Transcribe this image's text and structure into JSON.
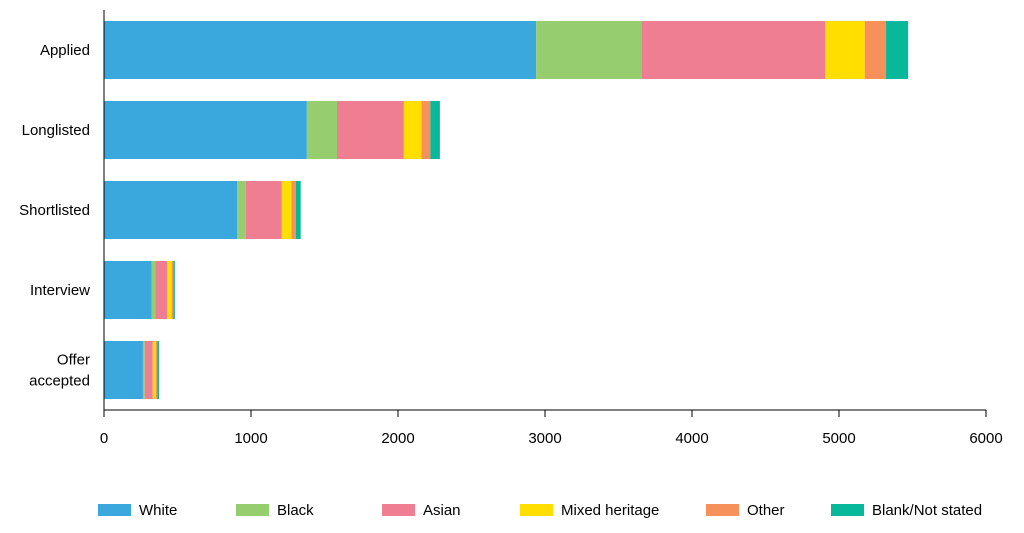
{
  "chart_data": {
    "type": "bar",
    "orientation": "horizontal",
    "stacked": true,
    "title": "",
    "xlabel": "",
    "ylabel": "",
    "xlim": [
      0,
      6000
    ],
    "xticks": [
      0,
      1000,
      2000,
      3000,
      4000,
      5000,
      6000
    ],
    "categories": [
      [
        "Applied"
      ],
      [
        "Longlisted"
      ],
      [
        "Shortlisted"
      ],
      [
        "Interview"
      ],
      [
        "Offer",
        "accepted"
      ]
    ],
    "series": [
      {
        "name": "White",
        "color": "#3aa8dc",
        "values": [
          2940,
          1380,
          905,
          325,
          265
        ]
      },
      {
        "name": "Black",
        "color": "#96cd6e",
        "values": [
          715,
          205,
          60,
          25,
          12
        ]
      },
      {
        "name": "Asian",
        "color": "#f07e92",
        "values": [
          1250,
          455,
          245,
          80,
          55
        ]
      },
      {
        "name": "Mixed heritage",
        "color": "#ffde00",
        "values": [
          270,
          120,
          65,
          30,
          20
        ]
      },
      {
        "name": "Other",
        "color": "#f7915b",
        "values": [
          145,
          60,
          30,
          12,
          10
        ]
      },
      {
        "name": "Blank/Not stated",
        "color": "#08b89a",
        "values": [
          150,
          65,
          33,
          10,
          12
        ]
      }
    ],
    "grid": false,
    "legend_position": "bottom"
  }
}
